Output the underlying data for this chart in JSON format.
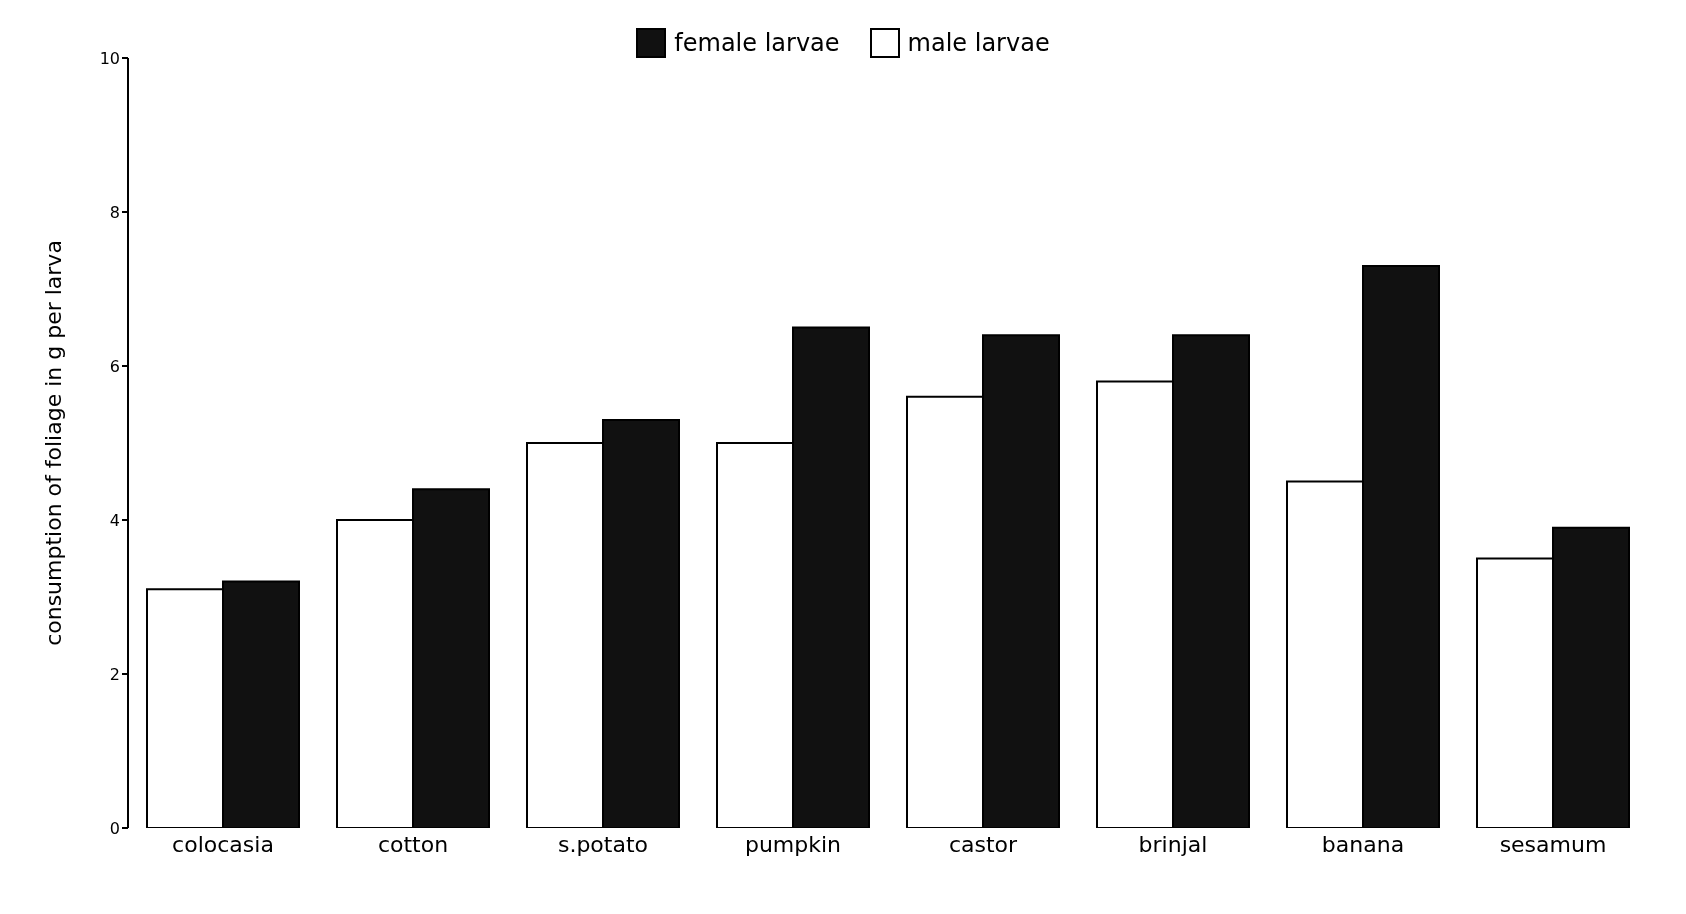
{
  "chart_data": {
    "type": "bar",
    "ylabel": "consumption of foliage in g per larva",
    "categories": [
      "colocasia",
      "cotton",
      "s.potato",
      "pumpkin",
      "castor",
      "brinjal",
      "banana",
      "sesamum"
    ],
    "series": [
      {
        "name": "male larvae",
        "color": "#ffffff",
        "values": [
          3.1,
          4.0,
          5.0,
          5.0,
          5.6,
          5.8,
          4.5,
          3.5
        ]
      },
      {
        "name": "female larvae",
        "color": "#111111",
        "values": [
          3.2,
          4.4,
          5.3,
          6.5,
          6.4,
          6.4,
          7.3,
          3.9
        ]
      }
    ],
    "ylim": [
      0,
      10
    ],
    "yticks": [
      0,
      2,
      4,
      6,
      8,
      10
    ],
    "grid": false,
    "legend": "top"
  }
}
